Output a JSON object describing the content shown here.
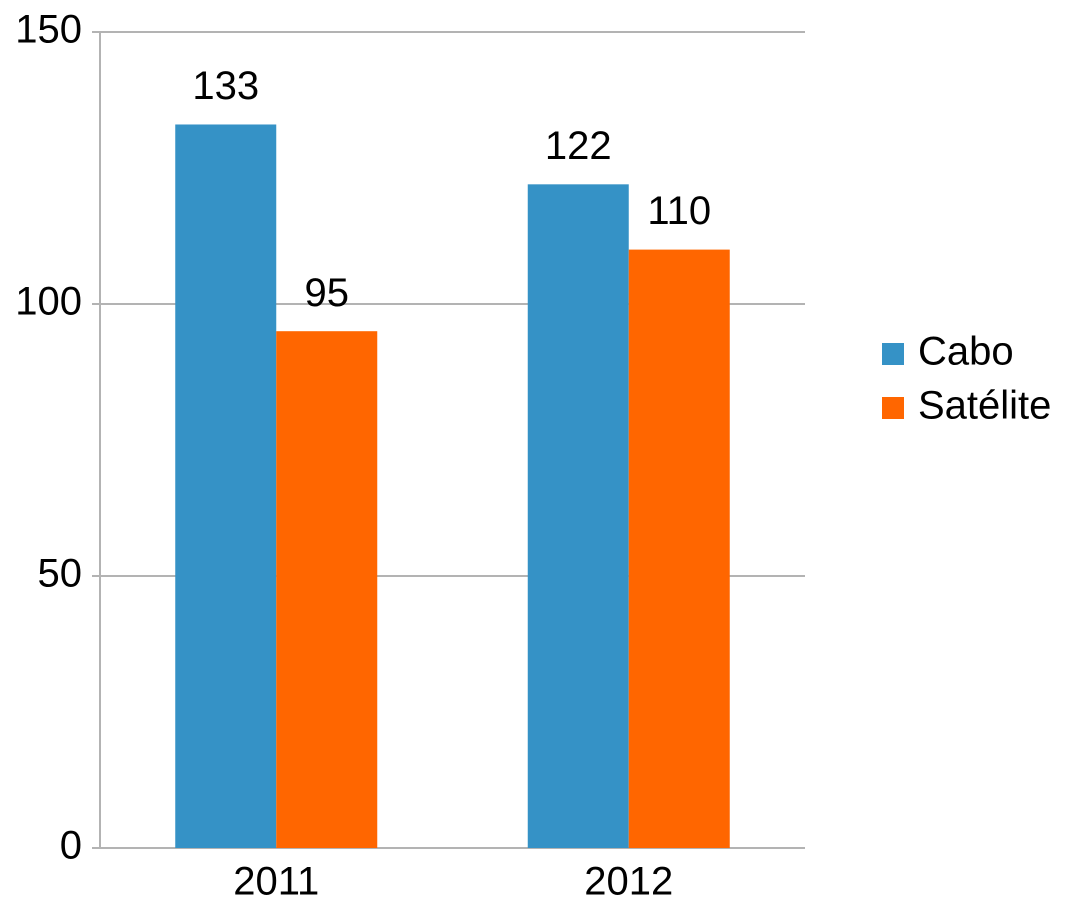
{
  "chart_data": {
    "type": "bar",
    "categories": [
      "2011",
      "2012"
    ],
    "series": [
      {
        "name": "Cabo",
        "color": "#3592c6",
        "values": [
          133,
          122
        ]
      },
      {
        "name": "Satélite",
        "color": "#ff6600",
        "values": [
          95,
          110
        ]
      }
    ],
    "ylim": [
      0,
      150
    ],
    "yticks": [
      0,
      50,
      100,
      150
    ],
    "grid": true,
    "legend": "right"
  }
}
